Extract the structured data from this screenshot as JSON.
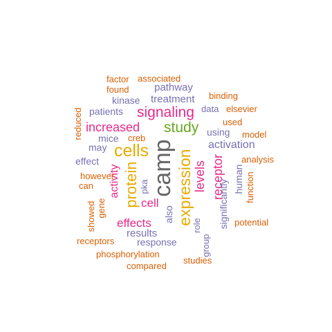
{
  "colors": {
    "orange": "#d95f02",
    "purple": "#7570b3",
    "pink": "#e7298a",
    "green": "#66a61e",
    "gold": "#e6ab02",
    "grey": "#666666"
  },
  "words": [
    {
      "text": "camp",
      "color": "grey",
      "orientation": "vertical"
    },
    {
      "text": "expression",
      "color": "gold",
      "orientation": "vertical"
    },
    {
      "text": "cells",
      "color": "gold",
      "orientation": "horizontal"
    },
    {
      "text": "protein",
      "color": "gold",
      "orientation": "vertical"
    },
    {
      "text": "signaling",
      "color": "pink",
      "orientation": "horizontal"
    },
    {
      "text": "study",
      "color": "green",
      "orientation": "horizontal"
    },
    {
      "text": "increased",
      "color": "pink",
      "orientation": "horizontal"
    },
    {
      "text": "receptor",
      "color": "pink",
      "orientation": "vertical"
    },
    {
      "text": "levels",
      "color": "pink",
      "orientation": "vertical"
    },
    {
      "text": "activity",
      "color": "pink",
      "orientation": "vertical"
    },
    {
      "text": "effects",
      "color": "pink",
      "orientation": "horizontal"
    },
    {
      "text": "cell",
      "color": "pink",
      "orientation": "horizontal"
    },
    {
      "text": "activation",
      "color": "purple",
      "orientation": "horizontal"
    },
    {
      "text": "pathway",
      "color": "purple",
      "orientation": "horizontal"
    },
    {
      "text": "treatment",
      "color": "purple",
      "orientation": "horizontal"
    },
    {
      "text": "results",
      "color": "purple",
      "orientation": "horizontal"
    },
    {
      "text": "kinase",
      "color": "purple",
      "orientation": "horizontal"
    },
    {
      "text": "patients",
      "color": "purple",
      "orientation": "horizontal"
    },
    {
      "text": "mice",
      "color": "purple",
      "orientation": "horizontal"
    },
    {
      "text": "may",
      "color": "purple",
      "orientation": "horizontal"
    },
    {
      "text": "effect",
      "color": "purple",
      "orientation": "horizontal"
    },
    {
      "text": "using",
      "color": "purple",
      "orientation": "horizontal"
    },
    {
      "text": "data",
      "color": "purple",
      "orientation": "horizontal"
    },
    {
      "text": "human",
      "color": "purple",
      "orientation": "vertical"
    },
    {
      "text": "significantly",
      "color": "purple",
      "orientation": "vertical"
    },
    {
      "text": "also",
      "color": "purple",
      "orientation": "vertical"
    },
    {
      "text": "pka",
      "color": "purple",
      "orientation": "vertical"
    },
    {
      "text": "response",
      "color": "purple",
      "orientation": "horizontal"
    },
    {
      "text": "role",
      "color": "purple",
      "orientation": "vertical"
    },
    {
      "text": "group",
      "color": "purple",
      "orientation": "vertical"
    },
    {
      "text": "factor",
      "color": "orange",
      "orientation": "horizontal"
    },
    {
      "text": "associated",
      "color": "orange",
      "orientation": "horizontal"
    },
    {
      "text": "found",
      "color": "orange",
      "orientation": "horizontal"
    },
    {
      "text": "binding",
      "color": "orange",
      "orientation": "horizontal"
    },
    {
      "text": "elsevier",
      "color": "orange",
      "orientation": "horizontal"
    },
    {
      "text": "used",
      "color": "orange",
      "orientation": "horizontal"
    },
    {
      "text": "model",
      "color": "orange",
      "orientation": "horizontal"
    },
    {
      "text": "reduced",
      "color": "orange",
      "orientation": "vertical"
    },
    {
      "text": "creb",
      "color": "orange",
      "orientation": "horizontal"
    },
    {
      "text": "analysis",
      "color": "orange",
      "orientation": "horizontal"
    },
    {
      "text": "however",
      "color": "orange",
      "orientation": "horizontal"
    },
    {
      "text": "can",
      "color": "orange",
      "orientation": "horizontal"
    },
    {
      "text": "function",
      "color": "orange",
      "orientation": "vertical"
    },
    {
      "text": "showed",
      "color": "orange",
      "orientation": "vertical"
    },
    {
      "text": "gene",
      "color": "orange",
      "orientation": "vertical"
    },
    {
      "text": "potential",
      "color": "orange",
      "orientation": "horizontal"
    },
    {
      "text": "receptors",
      "color": "orange",
      "orientation": "horizontal"
    },
    {
      "text": "phosphorylation",
      "color": "orange",
      "orientation": "horizontal"
    },
    {
      "text": "studies",
      "color": "orange",
      "orientation": "horizontal"
    },
    {
      "text": "compared",
      "color": "orange",
      "orientation": "horizontal"
    }
  ]
}
